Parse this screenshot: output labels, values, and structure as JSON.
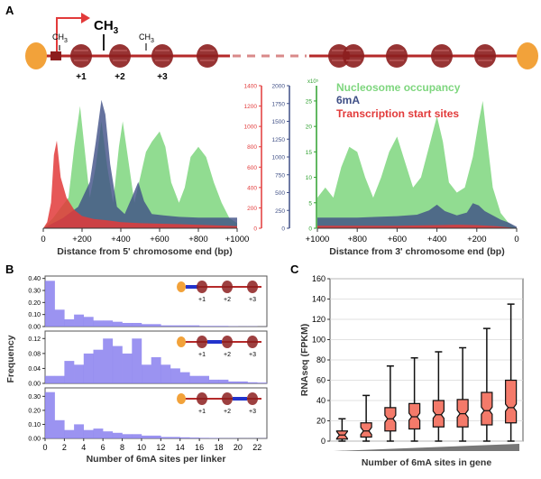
{
  "panel_labels": {
    "a": "A",
    "b": "B",
    "c": "C"
  },
  "colors": {
    "nucleosome": "#7ed67e",
    "m6a": "#3f4f86",
    "tss": "#e23a3a",
    "hist_b": "#8a80ee",
    "box_c": "#f47a6a",
    "nuc_dark": "#8c1e1e",
    "telomere": "#f2a23a"
  },
  "schematic_a": {
    "methyl_small": "CH",
    "methyl_small_sub": "3",
    "methyl_big": "CH",
    "methyl_big_sub": "3",
    "positions": [
      "+1",
      "+2",
      "+3"
    ]
  },
  "chart_data": [
    {
      "id": "A-left",
      "type": "area",
      "xlabel": "Distance from 5' chromosome end (bp)",
      "xticks": [
        "0",
        "+200",
        "+400",
        "+600",
        "+800",
        "+1000"
      ],
      "xlim": [
        0,
        1000
      ],
      "legend": [
        "Nucleosome occupancy",
        "6mA",
        "Transcription start sites"
      ],
      "axes": [
        {
          "name": "tss",
          "ticks": [
            "0",
            "200",
            "400",
            "600",
            "800",
            "1000",
            "1200",
            "1400"
          ],
          "max": 1400
        },
        {
          "name": "m6a",
          "ticks": [
            "0",
            "250",
            "500",
            "750",
            "1000",
            "1250",
            "1500",
            "1750",
            "2000"
          ],
          "max": 2000
        },
        {
          "name": "nucleosome",
          "ticks": [
            "0",
            "5",
            "10",
            "15",
            "20",
            "25"
          ],
          "exponent": "x10⁵",
          "max": 28
        }
      ],
      "series": [
        {
          "name": "Nucleosome occupancy",
          "x": [
            0,
            50,
            90,
            130,
            160,
            190,
            215,
            240,
            270,
            300,
            330,
            360,
            390,
            410,
            440,
            470,
            500,
            530,
            560,
            600,
            630,
            660,
            700,
            730,
            760,
            800,
            840,
            880,
            920,
            960,
            1000
          ],
          "y": [
            0,
            2,
            4,
            6,
            16,
            24,
            15,
            6,
            12,
            21,
            12,
            5,
            16,
            21,
            13,
            5,
            10,
            15,
            17,
            19,
            16,
            9,
            5,
            8,
            14,
            16,
            14,
            9,
            5,
            2,
            1
          ]
        },
        {
          "name": "6mA",
          "x": [
            0,
            100,
            180,
            240,
            270,
            300,
            320,
            345,
            380,
            420,
            460,
            490,
            520,
            560,
            620,
            700,
            800,
            900,
            1000
          ],
          "y": [
            0,
            140,
            300,
            650,
            1200,
            1800,
            1600,
            900,
            300,
            200,
            450,
            650,
            380,
            200,
            180,
            160,
            150,
            150,
            150
          ]
        },
        {
          "name": "Transcription start sites",
          "x": [
            0,
            20,
            40,
            55,
            70,
            90,
            120,
            160,
            200,
            260,
            320,
            400,
            500,
            700,
            1000
          ],
          "y": [
            0,
            60,
            250,
            720,
            860,
            500,
            300,
            180,
            120,
            90,
            80,
            60,
            50,
            40,
            20
          ]
        }
      ]
    },
    {
      "id": "A-right",
      "type": "area",
      "xlabel": "Distance from 3' chromosome end (bp)",
      "xticks": [
        "+1000",
        "+800",
        "+600",
        "+400",
        "+200",
        "0"
      ],
      "xlim": [
        1000,
        0
      ],
      "series": [
        {
          "name": "Nucleosome occupancy",
          "x": [
            1000,
            960,
            920,
            880,
            840,
            800,
            760,
            720,
            680,
            640,
            600,
            560,
            520,
            480,
            440,
            400,
            370,
            340,
            300,
            260,
            220,
            190,
            170,
            150,
            120,
            80,
            40,
            0
          ],
          "y": [
            6,
            8,
            6,
            12,
            16,
            15,
            10,
            6,
            10,
            15,
            18,
            13,
            8,
            10,
            16,
            22,
            17,
            9,
            7,
            8,
            14,
            21,
            25,
            18,
            8,
            3,
            1,
            0
          ]
        },
        {
          "name": "6mA",
          "x": [
            1000,
            900,
            800,
            700,
            600,
            500,
            440,
            400,
            360,
            300,
            250,
            220,
            190,
            160,
            120,
            80,
            40,
            0
          ],
          "y": [
            150,
            150,
            150,
            160,
            170,
            190,
            250,
            330,
            240,
            180,
            220,
            350,
            320,
            240,
            180,
            120,
            80,
            20
          ]
        },
        {
          "name": "Transcription start sites",
          "x": [
            1000,
            800,
            600,
            400,
            300,
            200,
            100,
            0
          ],
          "y": [
            25,
            25,
            25,
            30,
            35,
            30,
            20,
            0
          ]
        }
      ]
    },
    {
      "id": "B",
      "type": "bar",
      "xlabel": "Number of 6mA sites per linker",
      "ylabel": "Frequency",
      "xticks": [
        "0",
        "2",
        "4",
        "6",
        "8",
        "10",
        "12",
        "14",
        "16",
        "18",
        "20",
        "22"
      ],
      "xlim": [
        0,
        23
      ],
      "bin_width": 1,
      "panels": [
        {
          "linker": "0–+1",
          "yticks": [
            "0.00",
            "0.10",
            "0.20",
            "0.30",
            "0.40"
          ],
          "ylim": [
            0,
            0.42
          ],
          "values": [
            0.38,
            0.14,
            0.06,
            0.1,
            0.08,
            0.05,
            0.05,
            0.04,
            0.03,
            0.03,
            0.02,
            0.02,
            0.01,
            0.01,
            0.01,
            0.01,
            0.005,
            0.005,
            0.005,
            0.003,
            0.002,
            0.002,
            0.001
          ]
        },
        {
          "linker": "+1–+2",
          "yticks": [
            "0.00",
            "0.04",
            "0.08",
            "0.12"
          ],
          "ylim": [
            0,
            0.14
          ],
          "values": [
            0.02,
            0.02,
            0.06,
            0.05,
            0.08,
            0.09,
            0.12,
            0.1,
            0.08,
            0.12,
            0.05,
            0.07,
            0.05,
            0.04,
            0.03,
            0.02,
            0.02,
            0.01,
            0.01,
            0.005,
            0.005,
            0.003,
            0.002
          ]
        },
        {
          "linker": "+2–+3",
          "yticks": [
            "0.00",
            "0.10",
            "0.20",
            "0.30"
          ],
          "ylim": [
            0,
            0.36
          ],
          "values": [
            0.33,
            0.13,
            0.06,
            0.1,
            0.06,
            0.07,
            0.05,
            0.04,
            0.03,
            0.03,
            0.02,
            0.02,
            0.01,
            0.01,
            0.008,
            0.006,
            0.004,
            0.003,
            0.002,
            0.002,
            0.001,
            0.001,
            0.001
          ]
        }
      ]
    },
    {
      "id": "C",
      "type": "box",
      "xlabel": "Number of 6mA sites in gene",
      "ylabel": "RNAseq (FPKM)",
      "yticks": [
        "0",
        "20",
        "40",
        "60",
        "80",
        "100",
        "120",
        "140",
        "160"
      ],
      "ylim": [
        0,
        160
      ],
      "boxes": [
        {
          "min": 0,
          "q1": 2,
          "median": 6,
          "q3": 10,
          "max": 22
        },
        {
          "min": 0,
          "q1": 4,
          "median": 10,
          "q3": 18,
          "max": 45
        },
        {
          "min": 0,
          "q1": 10,
          "median": 22,
          "q3": 33,
          "max": 74
        },
        {
          "min": 0,
          "q1": 12,
          "median": 24,
          "q3": 37,
          "max": 82
        },
        {
          "min": 0,
          "q1": 14,
          "median": 26,
          "q3": 40,
          "max": 88
        },
        {
          "min": 0,
          "q1": 14,
          "median": 27,
          "q3": 41,
          "max": 92
        },
        {
          "min": 0,
          "q1": 16,
          "median": 30,
          "q3": 48,
          "max": 111
        },
        {
          "min": 0,
          "q1": 18,
          "median": 33,
          "q3": 60,
          "max": 135
        }
      ]
    }
  ]
}
